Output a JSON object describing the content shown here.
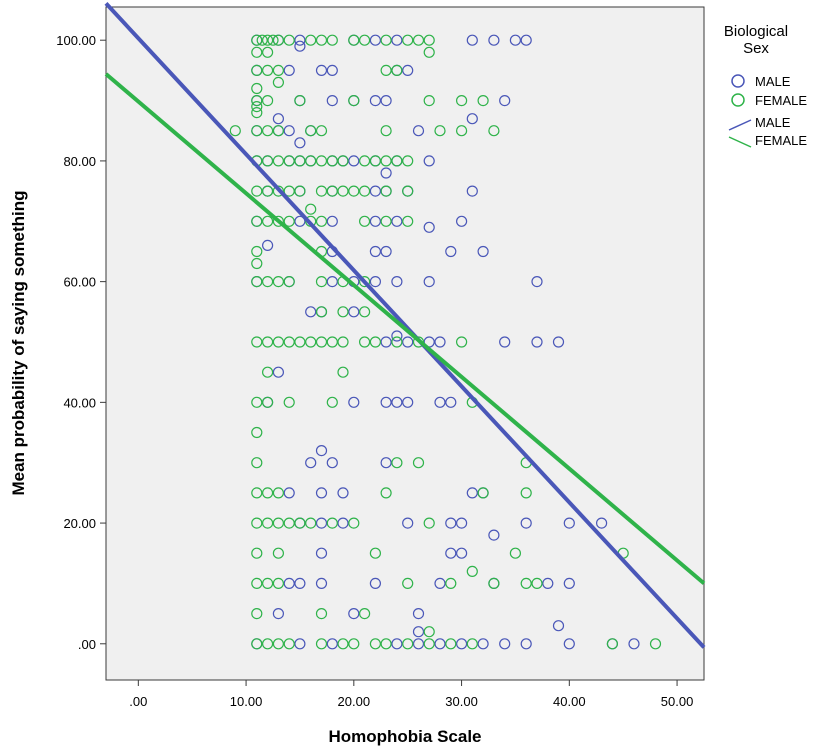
{
  "chart_data": {
    "type": "scatter",
    "xlabel": "Homophobia Scale",
    "ylabel": "Mean probability of saying something",
    "xlim": [
      -3,
      52.5
    ],
    "ylim": [
      -6,
      105.5
    ],
    "x_ticks": [
      0,
      10,
      20,
      30,
      40,
      50
    ],
    "x_tick_labels": [
      ".00",
      "10.00",
      "20.00",
      "30.00",
      "40.00",
      "50.00"
    ],
    "y_ticks": [
      0,
      20,
      40,
      60,
      80,
      100
    ],
    "y_tick_labels": [
      ".00",
      "20.00",
      "40.00",
      "60.00",
      "80.00",
      "100.00"
    ],
    "grid": false,
    "plot_background": "#f0f0f0",
    "legend": {
      "title": [
        "Biological",
        "Sex"
      ],
      "placement": "right",
      "entries": [
        {
          "label": "MALE",
          "kind": "marker",
          "color": "#4a57b8"
        },
        {
          "label": "FEMALE",
          "kind": "marker",
          "color": "#2fb34a"
        },
        {
          "label": "MALE",
          "kind": "line",
          "color": "#4a57b8"
        },
        {
          "label": "FEMALE",
          "kind": "line",
          "color": "#2fb34a"
        }
      ]
    },
    "series": [
      {
        "name": "MALE",
        "color": "#4a57b8",
        "marker": "open-circle",
        "points": [
          [
            11,
            100
          ],
          [
            13,
            100
          ],
          [
            15,
            100
          ],
          [
            20,
            100
          ],
          [
            22,
            100
          ],
          [
            24,
            100
          ],
          [
            31,
            100
          ],
          [
            33,
            100
          ],
          [
            35,
            100
          ],
          [
            36,
            100
          ],
          [
            15,
            99
          ],
          [
            11,
            95
          ],
          [
            14,
            95
          ],
          [
            17,
            95
          ],
          [
            18,
            95
          ],
          [
            24,
            95
          ],
          [
            25,
            95
          ],
          [
            11,
            90
          ],
          [
            15,
            90
          ],
          [
            18,
            90
          ],
          [
            20,
            90
          ],
          [
            22,
            90
          ],
          [
            23,
            90
          ],
          [
            34,
            90
          ],
          [
            13,
            87
          ],
          [
            31,
            87
          ],
          [
            11,
            85
          ],
          [
            13,
            85
          ],
          [
            14,
            85
          ],
          [
            16,
            85
          ],
          [
            26,
            85
          ],
          [
            15,
            83
          ],
          [
            11,
            80
          ],
          [
            12,
            80
          ],
          [
            14,
            80
          ],
          [
            15,
            80
          ],
          [
            16,
            80
          ],
          [
            18,
            80
          ],
          [
            19,
            80
          ],
          [
            20,
            80
          ],
          [
            22,
            80
          ],
          [
            24,
            80
          ],
          [
            27,
            80
          ],
          [
            23,
            78
          ],
          [
            12,
            75
          ],
          [
            15,
            75
          ],
          [
            18,
            75
          ],
          [
            22,
            75
          ],
          [
            23,
            75
          ],
          [
            25,
            75
          ],
          [
            31,
            75
          ],
          [
            11,
            70
          ],
          [
            15,
            70
          ],
          [
            18,
            70
          ],
          [
            22,
            70
          ],
          [
            24,
            70
          ],
          [
            27,
            69
          ],
          [
            30,
            70
          ],
          [
            12,
            66
          ],
          [
            18,
            65
          ],
          [
            22,
            65
          ],
          [
            23,
            65
          ],
          [
            29,
            65
          ],
          [
            32,
            65
          ],
          [
            11,
            60
          ],
          [
            14,
            60
          ],
          [
            18,
            60
          ],
          [
            20,
            60
          ],
          [
            22,
            60
          ],
          [
            24,
            60
          ],
          [
            27,
            60
          ],
          [
            37,
            60
          ],
          [
            16,
            55
          ],
          [
            17,
            55
          ],
          [
            20,
            55
          ],
          [
            24,
            51
          ],
          [
            23,
            50
          ],
          [
            25,
            50
          ],
          [
            27,
            50
          ],
          [
            28,
            50
          ],
          [
            34,
            50
          ],
          [
            37,
            50
          ],
          [
            39,
            50
          ],
          [
            13,
            45
          ],
          [
            12,
            40
          ],
          [
            20,
            40
          ],
          [
            23,
            40
          ],
          [
            24,
            40
          ],
          [
            25,
            40
          ],
          [
            28,
            40
          ],
          [
            29,
            40
          ],
          [
            16,
            30
          ],
          [
            17,
            32
          ],
          [
            18,
            30
          ],
          [
            23,
            30
          ],
          [
            14,
            25
          ],
          [
            17,
            25
          ],
          [
            19,
            25
          ],
          [
            31,
            25
          ],
          [
            32,
            25
          ],
          [
            15,
            20
          ],
          [
            17,
            20
          ],
          [
            19,
            20
          ],
          [
            25,
            20
          ],
          [
            29,
            20
          ],
          [
            30,
            20
          ],
          [
            36,
            20
          ],
          [
            40,
            20
          ],
          [
            43,
            20
          ],
          [
            33,
            18
          ],
          [
            17,
            15
          ],
          [
            29,
            15
          ],
          [
            30,
            15
          ],
          [
            14,
            10
          ],
          [
            15,
            10
          ],
          [
            17,
            10
          ],
          [
            22,
            10
          ],
          [
            28,
            10
          ],
          [
            33,
            10
          ],
          [
            38,
            10
          ],
          [
            40,
            10
          ],
          [
            13,
            5
          ],
          [
            20,
            5
          ],
          [
            26,
            5
          ],
          [
            26,
            2
          ],
          [
            39,
            3
          ],
          [
            11,
            0
          ],
          [
            15,
            0
          ],
          [
            18,
            0
          ],
          [
            24,
            0
          ],
          [
            26,
            0
          ],
          [
            28,
            0
          ],
          [
            30,
            0
          ],
          [
            32,
            0
          ],
          [
            34,
            0
          ],
          [
            36,
            0
          ],
          [
            40,
            0
          ],
          [
            44,
            0
          ],
          [
            46,
            0
          ]
        ]
      },
      {
        "name": "FEMALE",
        "color": "#2fb34a",
        "marker": "open-circle",
        "points": [
          [
            11,
            100
          ],
          [
            11.5,
            100
          ],
          [
            12,
            100
          ],
          [
            12.5,
            100
          ],
          [
            13,
            100
          ],
          [
            14,
            100
          ],
          [
            16,
            100
          ],
          [
            17,
            100
          ],
          [
            18,
            100
          ],
          [
            20,
            100
          ],
          [
            21,
            100
          ],
          [
            23,
            100
          ],
          [
            25,
            100
          ],
          [
            26,
            100
          ],
          [
            27,
            100
          ],
          [
            27,
            98
          ],
          [
            11,
            98
          ],
          [
            12,
            98
          ],
          [
            11,
            95
          ],
          [
            12,
            95
          ],
          [
            13,
            95
          ],
          [
            23,
            95
          ],
          [
            24,
            95
          ],
          [
            13,
            93
          ],
          [
            11,
            92
          ],
          [
            11,
            90
          ],
          [
            12,
            90
          ],
          [
            15,
            90
          ],
          [
            20,
            90
          ],
          [
            27,
            90
          ],
          [
            30,
            90
          ],
          [
            32,
            90
          ],
          [
            11,
            89
          ],
          [
            11,
            88
          ],
          [
            9,
            85
          ],
          [
            11,
            85
          ],
          [
            12,
            85
          ],
          [
            13,
            85
          ],
          [
            16,
            85
          ],
          [
            17,
            85
          ],
          [
            23,
            85
          ],
          [
            28,
            85
          ],
          [
            30,
            85
          ],
          [
            33,
            85
          ],
          [
            11,
            80
          ],
          [
            12,
            80
          ],
          [
            13,
            80
          ],
          [
            14,
            80
          ],
          [
            15,
            80
          ],
          [
            16,
            80
          ],
          [
            17,
            80
          ],
          [
            18,
            80
          ],
          [
            19,
            80
          ],
          [
            21,
            80
          ],
          [
            22,
            80
          ],
          [
            23,
            80
          ],
          [
            24,
            80
          ],
          [
            25,
            80
          ],
          [
            11,
            75
          ],
          [
            12,
            75
          ],
          [
            13,
            75
          ],
          [
            14,
            75
          ],
          [
            15,
            75
          ],
          [
            17,
            75
          ],
          [
            18,
            75
          ],
          [
            19,
            75
          ],
          [
            20,
            75
          ],
          [
            21,
            75
          ],
          [
            23,
            75
          ],
          [
            25,
            75
          ],
          [
            11,
            70
          ],
          [
            12,
            70
          ],
          [
            13,
            70
          ],
          [
            14,
            70
          ],
          [
            16,
            70
          ],
          [
            17,
            70
          ],
          [
            21,
            70
          ],
          [
            23,
            70
          ],
          [
            25,
            70
          ],
          [
            16,
            72
          ],
          [
            11,
            65
          ],
          [
            17,
            65
          ],
          [
            11,
            63
          ],
          [
            11,
            60
          ],
          [
            12,
            60
          ],
          [
            13,
            60
          ],
          [
            14,
            60
          ],
          [
            17,
            60
          ],
          [
            19,
            60
          ],
          [
            21,
            60
          ],
          [
            17,
            55
          ],
          [
            19,
            55
          ],
          [
            21,
            55
          ],
          [
            11,
            50
          ],
          [
            12,
            50
          ],
          [
            13,
            50
          ],
          [
            14,
            50
          ],
          [
            15,
            50
          ],
          [
            16,
            50
          ],
          [
            17,
            50
          ],
          [
            18,
            50
          ],
          [
            19,
            50
          ],
          [
            21,
            50
          ],
          [
            22,
            50
          ],
          [
            24,
            50
          ],
          [
            26,
            50
          ],
          [
            30,
            50
          ],
          [
            12,
            45
          ],
          [
            19,
            45
          ],
          [
            11,
            40
          ],
          [
            12,
            40
          ],
          [
            14,
            40
          ],
          [
            18,
            40
          ],
          [
            31,
            40
          ],
          [
            11,
            35
          ],
          [
            11,
            30
          ],
          [
            24,
            30
          ],
          [
            26,
            30
          ],
          [
            36,
            30
          ],
          [
            11,
            25
          ],
          [
            12,
            25
          ],
          [
            13,
            25
          ],
          [
            23,
            25
          ],
          [
            32,
            25
          ],
          [
            36,
            25
          ],
          [
            11,
            20
          ],
          [
            12,
            20
          ],
          [
            13,
            20
          ],
          [
            14,
            20
          ],
          [
            15,
            20
          ],
          [
            16,
            20
          ],
          [
            18,
            20
          ],
          [
            20,
            20
          ],
          [
            27,
            20
          ],
          [
            11,
            15
          ],
          [
            13,
            15
          ],
          [
            22,
            15
          ],
          [
            35,
            15
          ],
          [
            45,
            15
          ],
          [
            11,
            10
          ],
          [
            12,
            10
          ],
          [
            13,
            10
          ],
          [
            25,
            10
          ],
          [
            29,
            10
          ],
          [
            33,
            10
          ],
          [
            36,
            10
          ],
          [
            37,
            10
          ],
          [
            31,
            12
          ],
          [
            11,
            5
          ],
          [
            17,
            5
          ],
          [
            21,
            5
          ],
          [
            27,
            2
          ],
          [
            11,
            0
          ],
          [
            12,
            0
          ],
          [
            13,
            0
          ],
          [
            14,
            0
          ],
          [
            17,
            0
          ],
          [
            19,
            0
          ],
          [
            20,
            0
          ],
          [
            22,
            0
          ],
          [
            23,
            0
          ],
          [
            25,
            0
          ],
          [
            27,
            0
          ],
          [
            29,
            0
          ],
          [
            31,
            0
          ],
          [
            44,
            0
          ],
          [
            48,
            0
          ]
        ]
      }
    ],
    "fit_lines": [
      {
        "name": "MALE",
        "color": "#4a57b8",
        "from": [
          -3,
          106.1
        ],
        "to": [
          52.5,
          -0.6
        ]
      },
      {
        "name": "FEMALE",
        "color": "#2fb34a",
        "from": [
          -3,
          94.4
        ],
        "to": [
          52.5,
          10.0
        ]
      }
    ]
  }
}
